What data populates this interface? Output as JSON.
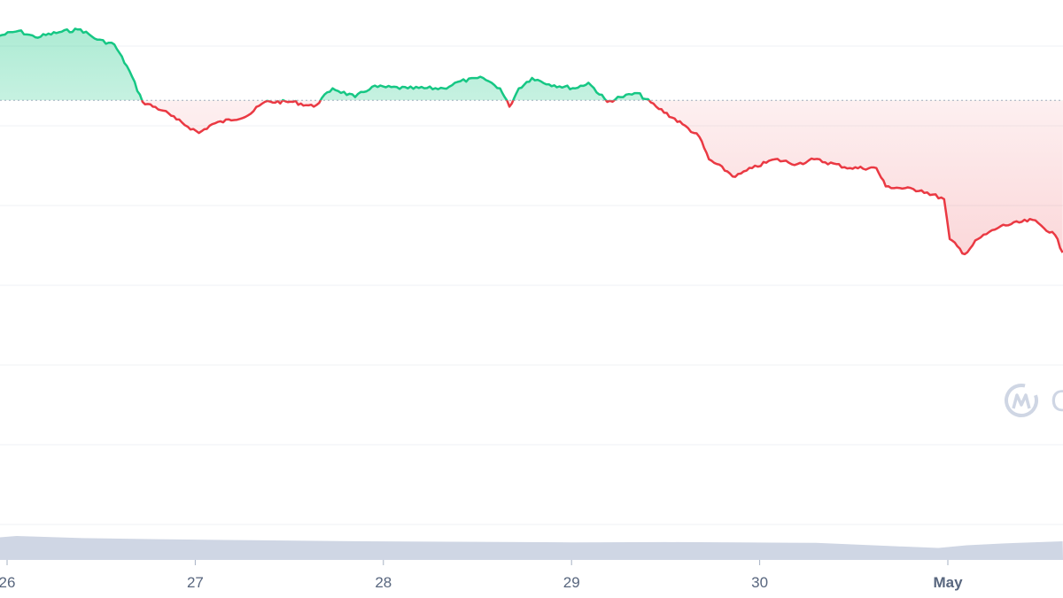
{
  "chart_data": {
    "type": "line",
    "title": "",
    "xlabel": "",
    "ylabel": "",
    "x_tick_labels": [
      "26",
      "27",
      "28",
      "29",
      "30",
      "May"
    ],
    "x_tick_values": [
      26,
      27,
      28,
      29,
      30,
      31
    ],
    "ylim": [
      0,
      6.58
    ],
    "xlim": [
      25.96,
      31.61
    ],
    "grid": true,
    "gridlines_y": [
      0,
      1,
      2,
      3,
      4,
      5,
      6
    ],
    "reference_value": 5.32,
    "colors": {
      "above": "#16c784",
      "below": "#ea3943",
      "grid": "#eff2f5",
      "volume": "#cfd6e4",
      "reference": "#a6b0c3"
    },
    "series": [
      {
        "x": [
          25.96,
          26.06,
          26.15,
          26.29,
          26.39,
          26.48,
          26.57,
          26.65,
          26.72,
          26.83,
          26.9,
          27.02,
          27.09,
          27.28,
          27.37,
          27.52,
          27.63,
          27.73,
          27.85,
          27.94,
          28.13,
          28.32,
          28.41,
          28.53,
          28.62,
          28.67,
          28.72,
          28.79,
          28.88,
          29.02,
          29.09,
          29.19,
          29.26,
          29.35,
          29.45,
          29.59,
          29.68,
          29.73,
          29.87,
          29.96,
          30.08,
          30.2,
          30.29,
          30.48,
          30.62,
          30.67,
          30.86,
          30.98,
          31.01,
          31.09,
          31.16,
          31.28,
          31.45,
          31.57,
          31.61
        ],
        "y": [
          6.13,
          6.19,
          6.11,
          6.18,
          6.21,
          6.08,
          6.02,
          5.69,
          5.3,
          5.19,
          5.08,
          4.91,
          5.02,
          5.13,
          5.3,
          5.3,
          5.24,
          5.47,
          5.36,
          5.49,
          5.47,
          5.47,
          5.56,
          5.6,
          5.47,
          5.24,
          5.47,
          5.6,
          5.52,
          5.47,
          5.54,
          5.3,
          5.36,
          5.41,
          5.24,
          5.02,
          4.86,
          4.58,
          4.36,
          4.47,
          4.58,
          4.52,
          4.58,
          4.47,
          4.47,
          4.24,
          4.19,
          4.08,
          3.58,
          3.39,
          3.58,
          3.74,
          3.82,
          3.63,
          3.41
        ]
      }
    ],
    "volume": {
      "x": [
        25.96,
        26.05,
        26.4,
        26.8,
        27.3,
        27.9,
        28.5,
        29.0,
        29.5,
        29.9,
        30.3,
        30.7,
        30.95,
        31.1,
        31.3,
        31.61
      ],
      "y": [
        0.85,
        0.9,
        0.82,
        0.78,
        0.74,
        0.7,
        0.68,
        0.66,
        0.67,
        0.66,
        0.64,
        0.52,
        0.45,
        0.55,
        0.62,
        0.7
      ]
    }
  },
  "watermark": {
    "logo": "coinmarketcap-logo",
    "text": "C"
  }
}
